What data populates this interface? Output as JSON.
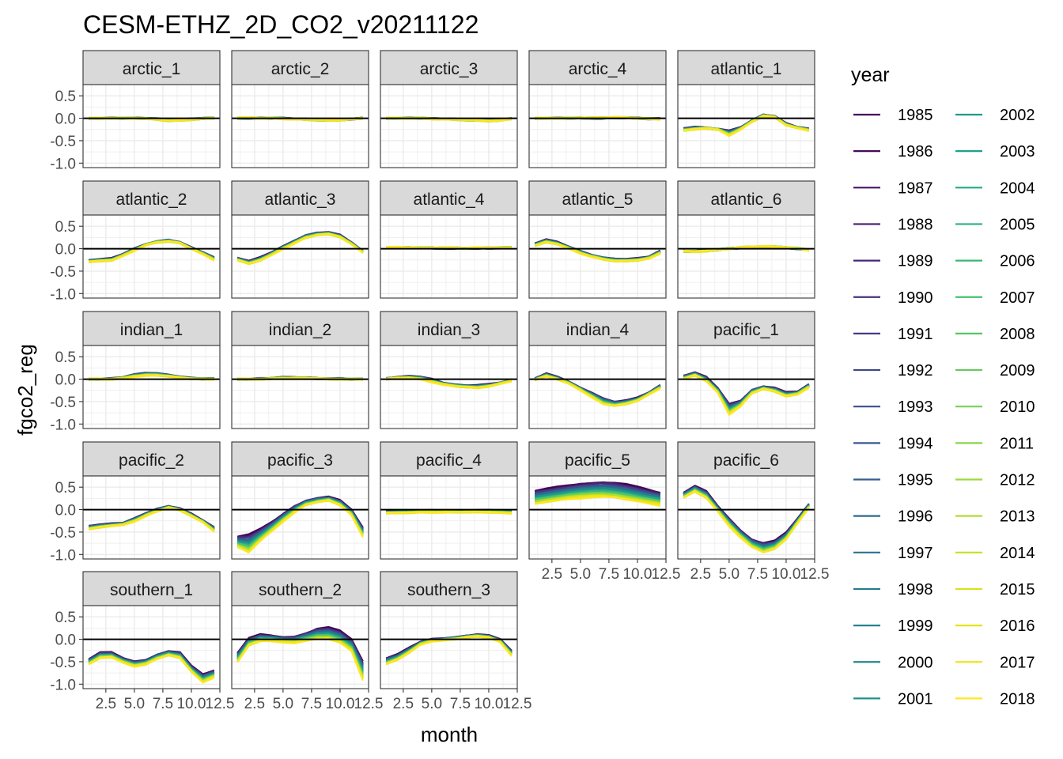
{
  "chart_data": {
    "type": "line",
    "title": "CESM-ETHZ_2D_CO2_v20211122",
    "xlabel": "month",
    "ylabel": "fgco2_reg",
    "xlim": [
      0.5,
      12.5
    ],
    "ylim": [
      -1.1,
      0.75
    ],
    "x_ticks": [
      2.5,
      5.0,
      7.5,
      10.0,
      12.5
    ],
    "x_tick_labels": [
      "2.5",
      "5.0",
      "7.5",
      "10.0",
      "12.5"
    ],
    "y_ticks": [
      0.5,
      0.0,
      -0.5,
      -1.0
    ],
    "y_tick_labels": [
      "0.5",
      "0.0",
      "-0.5",
      "-1.0"
    ],
    "grid": true,
    "reference_line_y": 0,
    "legend_title": "year",
    "legend_position": "right",
    "x": [
      1,
      2,
      3,
      4,
      5,
      6,
      7,
      8,
      9,
      10,
      11,
      12
    ],
    "years": [
      "1985",
      "1986",
      "1987",
      "1988",
      "1989",
      "1990",
      "1991",
      "1992",
      "1993",
      "1994",
      "1995",
      "1996",
      "1997",
      "1998",
      "1999",
      "2000",
      "2001",
      "2002",
      "2003",
      "2004",
      "2005",
      "2006",
      "2007",
      "2008",
      "2009",
      "2010",
      "2011",
      "2012",
      "2013",
      "2014",
      "2015",
      "2016",
      "2017",
      "2018"
    ],
    "year_colors": [
      "#440154",
      "#450b5a",
      "#471463",
      "#481c6e",
      "#472777",
      "#46327e",
      "#433d84",
      "#404688",
      "#3c4f8a",
      "#38588c",
      "#34608d",
      "#30688e",
      "#2c718e",
      "#29798e",
      "#26818e",
      "#23888e",
      "#20908d",
      "#1f988b",
      "#1fa088",
      "#23a884",
      "#2cb17e",
      "#38b977",
      "#46c06f",
      "#55c666",
      "#65cb5e",
      "#77d153",
      "#89d548",
      "#9bd93c",
      "#b0dd2f",
      "#c5e021",
      "#d8e219",
      "#e5e31a",
      "#f0e41e",
      "#fde725"
    ],
    "panels": [
      {
        "name": "arctic_1",
        "early": [
          0.0,
          0.0,
          0.0,
          0.0,
          0.0,
          0.0,
          -0.01,
          -0.03,
          -0.03,
          -0.02,
          0.0,
          0.0
        ],
        "late": [
          0.0,
          0.0,
          0.0,
          0.0,
          0.0,
          -0.01,
          -0.03,
          -0.06,
          -0.05,
          -0.03,
          -0.01,
          0.0
        ]
      },
      {
        "name": "arctic_2",
        "early": [
          0.0,
          0.0,
          0.0,
          0.0,
          0.0,
          -0.01,
          -0.02,
          -0.03,
          -0.04,
          -0.03,
          -0.02,
          0.0
        ],
        "late": [
          0.01,
          0.01,
          0.0,
          0.0,
          -0.01,
          -0.02,
          -0.03,
          -0.04,
          -0.05,
          -0.04,
          -0.02,
          0.0
        ]
      },
      {
        "name": "arctic_3",
        "early": [
          0.0,
          0.0,
          0.0,
          0.0,
          -0.01,
          -0.01,
          -0.02,
          -0.03,
          -0.04,
          -0.05,
          -0.04,
          -0.01
        ],
        "late": [
          0.0,
          0.0,
          0.0,
          0.0,
          -0.01,
          -0.02,
          -0.03,
          -0.04,
          -0.05,
          -0.06,
          -0.05,
          -0.01
        ]
      },
      {
        "name": "arctic_4",
        "early": [
          0.0,
          0.0,
          0.0,
          0.0,
          0.0,
          0.0,
          0.0,
          0.01,
          0.01,
          0.0,
          -0.01,
          -0.01
        ],
        "late": [
          0.0,
          0.0,
          0.0,
          0.0,
          0.01,
          0.01,
          0.01,
          0.02,
          0.01,
          0.0,
          -0.01,
          -0.02
        ]
      },
      {
        "name": "atlantic_1",
        "early": [
          -0.22,
          -0.2,
          -0.22,
          -0.24,
          -0.28,
          -0.2,
          -0.05,
          0.08,
          0.04,
          -0.12,
          -0.2,
          -0.24
        ],
        "late": [
          -0.28,
          -0.25,
          -0.22,
          -0.25,
          -0.38,
          -0.25,
          -0.08,
          0.05,
          0.02,
          -0.15,
          -0.22,
          -0.27
        ]
      },
      {
        "name": "atlantic_2",
        "early": [
          -0.25,
          -0.24,
          -0.22,
          -0.12,
          0.0,
          0.1,
          0.16,
          0.2,
          0.14,
          0.02,
          -0.08,
          -0.2
        ],
        "late": [
          -0.3,
          -0.28,
          -0.26,
          -0.16,
          -0.04,
          0.08,
          0.14,
          0.16,
          0.12,
          0.0,
          -0.12,
          -0.25
        ]
      },
      {
        "name": "atlantic_3",
        "early": [
          -0.2,
          -0.28,
          -0.2,
          -0.08,
          0.05,
          0.18,
          0.3,
          0.36,
          0.36,
          0.3,
          0.14,
          -0.06
        ],
        "late": [
          -0.26,
          -0.34,
          -0.26,
          -0.14,
          0.0,
          0.12,
          0.24,
          0.3,
          0.32,
          0.26,
          0.1,
          -0.08
        ]
      },
      {
        "name": "atlantic_4",
        "early": [
          0.02,
          0.02,
          0.02,
          0.02,
          0.01,
          0.01,
          0.01,
          0.01,
          0.01,
          0.01,
          0.02,
          0.02
        ],
        "late": [
          0.03,
          0.03,
          0.03,
          0.02,
          0.02,
          0.02,
          0.02,
          0.01,
          0.02,
          0.02,
          0.02,
          0.03
        ]
      },
      {
        "name": "atlantic_5",
        "early": [
          0.12,
          0.2,
          0.14,
          0.04,
          -0.06,
          -0.14,
          -0.2,
          -0.22,
          -0.24,
          -0.22,
          -0.18,
          -0.05
        ],
        "late": [
          0.06,
          0.14,
          0.1,
          0.0,
          -0.1,
          -0.18,
          -0.24,
          -0.28,
          -0.28,
          -0.26,
          -0.22,
          -0.1
        ]
      },
      {
        "name": "atlantic_6",
        "early": [
          -0.05,
          -0.06,
          -0.04,
          -0.02,
          0.0,
          0.02,
          0.03,
          0.04,
          0.04,
          0.02,
          0.0,
          -0.03
        ],
        "late": [
          -0.06,
          -0.07,
          -0.05,
          -0.02,
          0.0,
          0.03,
          0.04,
          0.05,
          0.04,
          0.03,
          0.01,
          -0.03
        ]
      },
      {
        "name": "indian_1",
        "early": [
          0.0,
          0.0,
          0.01,
          0.04,
          0.1,
          0.14,
          0.13,
          0.1,
          0.05,
          0.02,
          0.01,
          0.01
        ],
        "late": [
          0.0,
          0.0,
          0.0,
          0.02,
          0.06,
          0.08,
          0.08,
          0.06,
          0.03,
          0.01,
          0.0,
          0.0
        ]
      },
      {
        "name": "indian_2",
        "early": [
          0.0,
          0.0,
          0.01,
          0.02,
          0.04,
          0.04,
          0.03,
          0.02,
          0.01,
          0.01,
          0.0,
          0.0
        ],
        "late": [
          0.0,
          0.0,
          0.0,
          0.01,
          0.02,
          0.02,
          0.02,
          0.01,
          0.0,
          0.0,
          0.0,
          0.0
        ]
      },
      {
        "name": "indian_3",
        "early": [
          0.02,
          0.04,
          0.06,
          0.05,
          0.0,
          -0.08,
          -0.12,
          -0.14,
          -0.14,
          -0.12,
          -0.08,
          -0.02
        ],
        "late": [
          0.0,
          0.02,
          0.03,
          0.0,
          -0.06,
          -0.12,
          -0.16,
          -0.18,
          -0.2,
          -0.16,
          -0.1,
          -0.04
        ]
      },
      {
        "name": "indian_4",
        "early": [
          0.02,
          0.12,
          0.04,
          -0.06,
          -0.2,
          -0.3,
          -0.42,
          -0.5,
          -0.48,
          -0.42,
          -0.3,
          -0.14
        ],
        "late": [
          -0.02,
          0.06,
          0.0,
          -0.1,
          -0.24,
          -0.4,
          -0.56,
          -0.6,
          -0.56,
          -0.48,
          -0.34,
          -0.2
        ]
      },
      {
        "name": "pacific_1",
        "early": [
          0.08,
          0.14,
          0.04,
          -0.2,
          -0.55,
          -0.48,
          -0.24,
          -0.16,
          -0.2,
          -0.3,
          -0.28,
          -0.12
        ],
        "late": [
          0.0,
          0.08,
          -0.04,
          -0.3,
          -0.78,
          -0.6,
          -0.32,
          -0.22,
          -0.28,
          -0.38,
          -0.34,
          -0.18
        ]
      },
      {
        "name": "pacific_2",
        "early": [
          -0.36,
          -0.34,
          -0.32,
          -0.3,
          -0.2,
          -0.08,
          0.02,
          0.08,
          0.02,
          -0.1,
          -0.24,
          -0.4
        ],
        "late": [
          -0.44,
          -0.4,
          -0.36,
          -0.34,
          -0.26,
          -0.14,
          -0.04,
          0.04,
          -0.02,
          -0.14,
          -0.28,
          -0.48
        ]
      },
      {
        "name": "pacific_3",
        "early": [
          -0.6,
          -0.56,
          -0.44,
          -0.28,
          -0.1,
          0.08,
          0.2,
          0.26,
          0.28,
          0.2,
          0.0,
          -0.4
        ],
        "late": [
          -0.84,
          -0.96,
          -0.7,
          -0.48,
          -0.26,
          -0.06,
          0.1,
          0.16,
          0.2,
          0.1,
          -0.12,
          -0.6
        ]
      },
      {
        "name": "pacific_4",
        "early": [
          -0.04,
          -0.04,
          -0.03,
          -0.02,
          -0.02,
          -0.02,
          -0.02,
          -0.02,
          -0.02,
          -0.02,
          -0.03,
          -0.04
        ],
        "late": [
          -0.08,
          -0.08,
          -0.07,
          -0.06,
          -0.06,
          -0.06,
          -0.06,
          -0.06,
          -0.06,
          -0.06,
          -0.07,
          -0.08
        ]
      },
      {
        "name": "pacific_5",
        "early": [
          0.42,
          0.46,
          0.5,
          0.54,
          0.58,
          0.6,
          0.62,
          0.6,
          0.56,
          0.5,
          0.44,
          0.38
        ],
        "late": [
          0.12,
          0.16,
          0.2,
          0.24,
          0.26,
          0.28,
          0.28,
          0.26,
          0.22,
          0.18,
          0.14,
          0.1
        ]
      },
      {
        "name": "pacific_6",
        "early": [
          0.38,
          0.52,
          0.4,
          0.08,
          -0.2,
          -0.46,
          -0.66,
          -0.74,
          -0.7,
          -0.52,
          -0.2,
          0.12
        ],
        "late": [
          0.26,
          0.4,
          0.26,
          -0.04,
          -0.36,
          -0.62,
          -0.84,
          -0.96,
          -0.88,
          -0.66,
          -0.3,
          0.05
        ]
      },
      {
        "name": "southern_1",
        "early": [
          -0.44,
          -0.3,
          -0.3,
          -0.42,
          -0.5,
          -0.46,
          -0.34,
          -0.26,
          -0.3,
          -0.6,
          -0.78,
          -0.7
        ],
        "late": [
          -0.56,
          -0.42,
          -0.4,
          -0.52,
          -0.6,
          -0.56,
          -0.44,
          -0.36,
          -0.42,
          -0.72,
          -0.96,
          -0.84
        ]
      },
      {
        "name": "southern_2",
        "early": [
          -0.3,
          0.02,
          0.1,
          0.08,
          0.04,
          0.06,
          0.14,
          0.24,
          0.26,
          0.18,
          0.0,
          -0.48
        ],
        "late": [
          -0.52,
          -0.14,
          -0.04,
          -0.04,
          -0.06,
          -0.08,
          -0.04,
          0.0,
          0.0,
          -0.08,
          -0.26,
          -0.9
        ]
      },
      {
        "name": "southern_3",
        "early": [
          -0.42,
          -0.34,
          -0.2,
          -0.06,
          0.0,
          0.02,
          0.04,
          0.08,
          0.1,
          0.08,
          0.0,
          -0.26
        ],
        "late": [
          -0.56,
          -0.46,
          -0.3,
          -0.12,
          -0.04,
          -0.02,
          0.0,
          0.04,
          0.06,
          0.04,
          -0.06,
          -0.36
        ]
      }
    ]
  }
}
